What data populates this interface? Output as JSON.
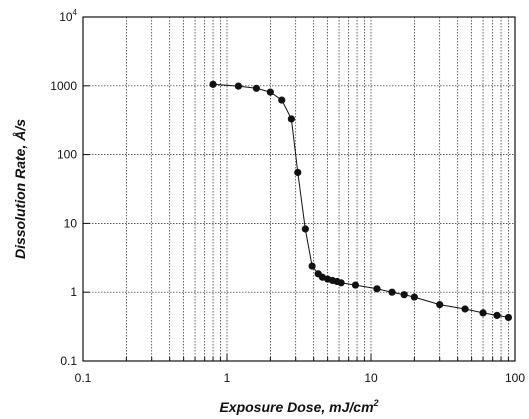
{
  "chart_data": {
    "type": "scatter",
    "title": "",
    "xlabel": "Exposure Dose, mJ/cm",
    "xlabel_sup": "2",
    "ylabel": "Dissolution Rate, Å/s",
    "x_scale": "log",
    "y_scale": "log",
    "xlim": [
      0.1,
      100
    ],
    "ylim": [
      0.1,
      10000
    ],
    "grid": true,
    "legend": "none",
    "x_ticks": [
      {
        "value": 0.1,
        "label": "0.1"
      },
      {
        "value": 1,
        "label": "1"
      },
      {
        "value": 10,
        "label": "10"
      },
      {
        "value": 100,
        "label": "100"
      }
    ],
    "y_ticks": [
      {
        "value": 0.1,
        "label": "0.1"
      },
      {
        "value": 1,
        "label": "1"
      },
      {
        "value": 10,
        "label": "10"
      },
      {
        "value": 100,
        "label": "100"
      },
      {
        "value": 1000,
        "label": "1000"
      },
      {
        "value": 10000,
        "label": "10",
        "sup": "4"
      }
    ],
    "series": [
      {
        "points": [
          [
            0.8,
            1050
          ],
          [
            1.2,
            990
          ],
          [
            1.6,
            920
          ],
          [
            2.0,
            810
          ],
          [
            2.4,
            620
          ],
          [
            2.8,
            330
          ],
          [
            3.1,
            55
          ],
          [
            3.5,
            8.3
          ],
          [
            3.9,
            2.4
          ],
          [
            4.3,
            1.85
          ],
          [
            4.6,
            1.65
          ],
          [
            5.0,
            1.55
          ],
          [
            5.4,
            1.48
          ],
          [
            5.8,
            1.43
          ],
          [
            6.2,
            1.37
          ],
          [
            7.8,
            1.27
          ],
          [
            11,
            1.12
          ],
          [
            14,
            1.0
          ],
          [
            17,
            0.92
          ],
          [
            20,
            0.85
          ],
          [
            30,
            0.66
          ],
          [
            45,
            0.57
          ],
          [
            60,
            0.5
          ],
          [
            75,
            0.46
          ],
          [
            90,
            0.43
          ]
        ]
      }
    ]
  }
}
